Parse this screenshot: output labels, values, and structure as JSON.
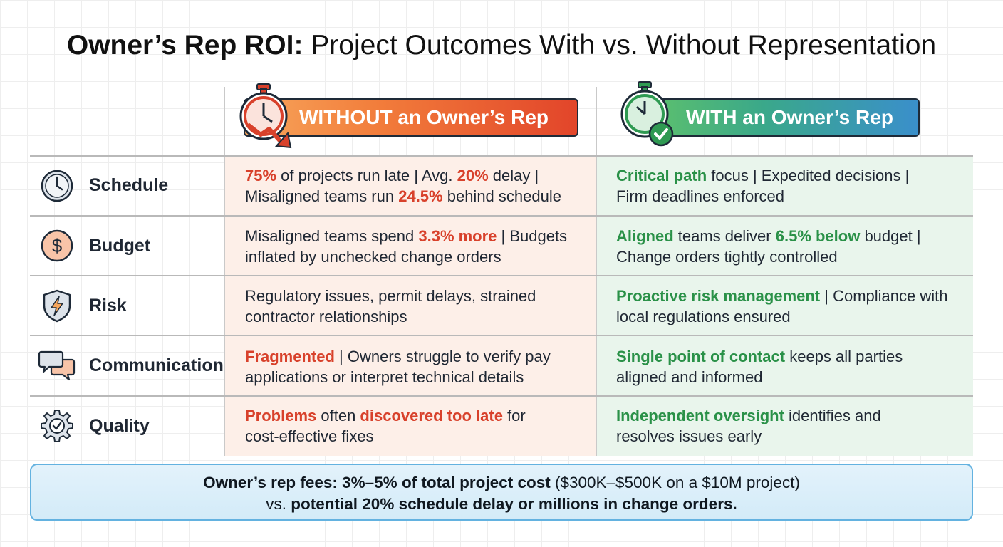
{
  "title": {
    "bold": "Owner’s Rep ROI:",
    "rest": "Project Outcomes With vs. Without Representation"
  },
  "headers": {
    "without": "WITHOUT an Owner’s Rep",
    "with": "WITH an Owner’s Rep"
  },
  "icons": {
    "without_header": "stopwatch-down-arrow-icon",
    "with_header": "stopwatch-checkmark-icon",
    "schedule": "clock-icon",
    "budget": "dollar-coin-icon",
    "risk": "shield-lightning-icon",
    "communication": "chat-bubbles-icon",
    "quality": "gear-check-icon"
  },
  "colors": {
    "negative": "#d8412b",
    "positive": "#2a9148",
    "without_bg": "#fdefe8",
    "with_bg": "#e9f5ec",
    "footer_border": "#63b2e0"
  },
  "rows": [
    {
      "label": "Schedule",
      "without": {
        "p1": "75%",
        "p2": " of projects run late | Avg. ",
        "p3": "20%",
        "p4": " delay |",
        "p5": "Misaligned teams run ",
        "p6": "24.5%",
        "p7": " behind schedule"
      },
      "with": {
        "p1": "Critical path",
        "p2": " focus | Expedited decisions |",
        "p3": "Firm deadlines enforced"
      }
    },
    {
      "label": "Budget",
      "without": {
        "p1": "Misaligned teams spend ",
        "p2": "3.3% more",
        "p3": " | Budgets",
        "p4": "inflated by unchecked change orders"
      },
      "with": {
        "p1": "Aligned",
        "p2": " teams deliver ",
        "p3": "6.5% below",
        "p4": " budget |",
        "p5": "Change orders tightly controlled"
      }
    },
    {
      "label": "Risk",
      "without": {
        "p1": "Regulatory issues, permit delays, strained",
        "p2": "contractor relationships"
      },
      "with": {
        "p1": "Proactive risk management",
        "p2": " | Compliance with",
        "p3": "local regulations ensured"
      }
    },
    {
      "label": "Communication",
      "without": {
        "p1": "Fragmented",
        "p2": " | Owners struggle to verify pay",
        "p3": "applications or interpret technical details"
      },
      "with": {
        "p1": "Single point of contact",
        "p2": " keeps all parties",
        "p3": "aligned and informed"
      }
    },
    {
      "label": "Quality",
      "without": {
        "p1": "Problems",
        "p2": " often ",
        "p3": "discovered too late",
        "p4": " for",
        "p5": "cost-effective fixes"
      },
      "with": {
        "p1": "Independent oversight",
        "p2": " identifies and",
        "p3": "resolves issues early"
      }
    }
  ],
  "footer": {
    "b1": "Owner’s rep fees: 3%–5% of total project cost",
    "n1": " ($300K–$500K on a $10M project)",
    "n2": "vs. ",
    "b2": "potential 20% schedule delay or millions in change orders."
  }
}
